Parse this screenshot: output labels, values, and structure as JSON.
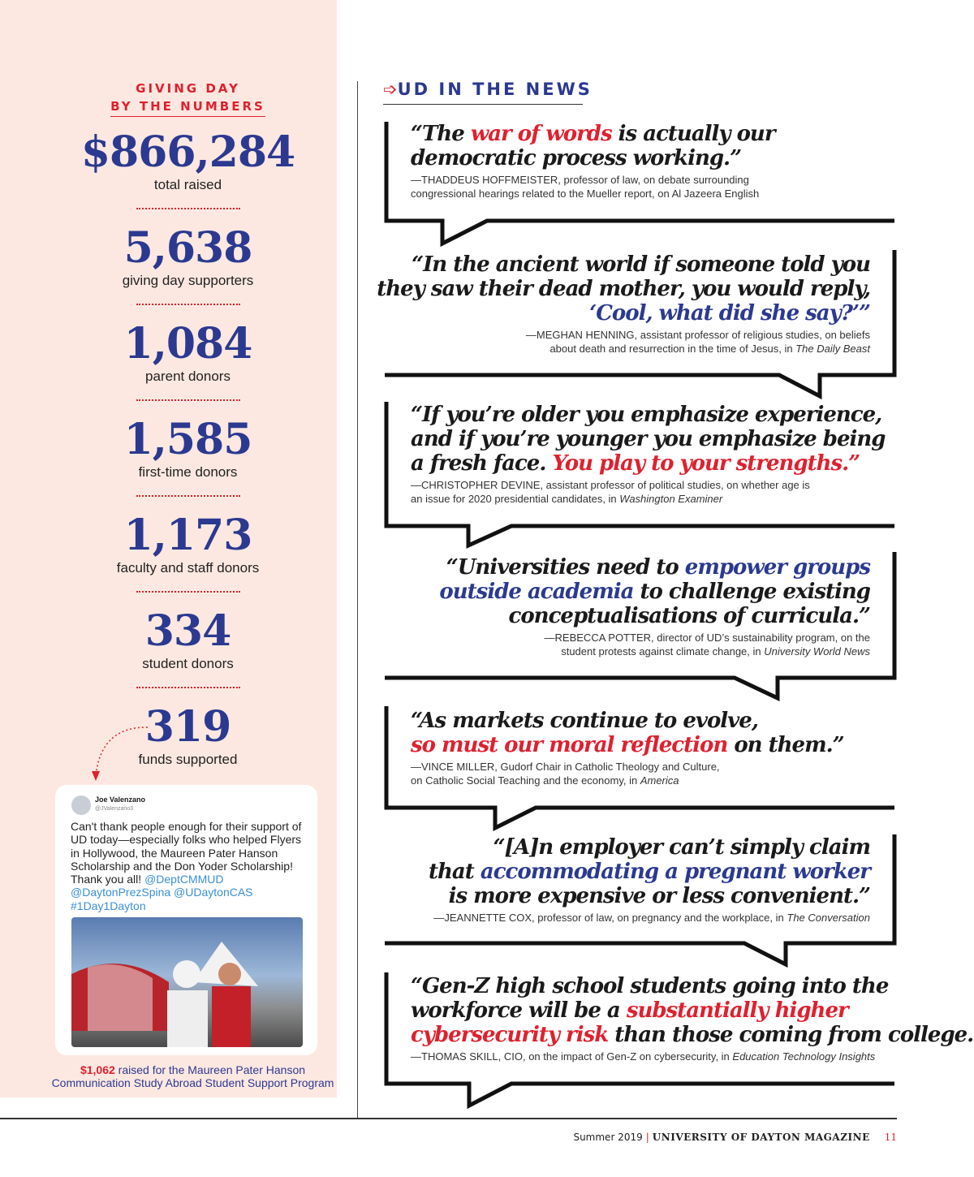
{
  "sidebar": {
    "heading_line1": "GIVING DAY",
    "heading_line2": "BY THE NUMBERS",
    "stats": [
      {
        "value": "$866,284",
        "label": "total raised"
      },
      {
        "value": "5,638",
        "label": "giving day supporters"
      },
      {
        "value": "1,084",
        "label": "parent donors"
      },
      {
        "value": "1,585",
        "label": "first-time donors"
      },
      {
        "value": "1,173",
        "label": "faculty and staff donors"
      },
      {
        "value": "334",
        "label": "student donors"
      },
      {
        "value": "319",
        "label": "funds supported"
      }
    ],
    "tweet": {
      "name": "Joe Valenzano",
      "handle": "@JValenzano3",
      "text": "Can't thank people enough for their support of UD today—especially folks who helped Flyers in Hollywood, the Maureen Pater Hanson Scholarship and the Don Yoder Scholarship! Thank you all! ",
      "links": "@DeptCMMUD @DaytonPrezSpina @UDaytonCAS #1Day1Dayton"
    },
    "caption_amount": "$1,062",
    "caption_text": " raised for the Maureen Pater Hanson Communication Study Abroad Student Support Program"
  },
  "news": {
    "heading": "UD IN THE NEWS",
    "arrow_icon": "arrow-right-icon",
    "quotes": [
      {
        "side": "left",
        "lines": [
          [
            {
              "t": "“The "
            },
            {
              "t": "war of words",
              "c": "red"
            },
            {
              "t": " is actually our"
            }
          ],
          [
            {
              "t": "democratic process working.”"
            }
          ]
        ],
        "attribution": [
          [
            {
              "t": "—THADDEUS HOFFMEISTER, professor of law, on debate surrounding"
            }
          ],
          [
            {
              "t": "congressional hearings related to the Mueller report, on Al Jazeera English"
            }
          ]
        ]
      },
      {
        "side": "right",
        "lines": [
          [
            {
              "t": "“In the ancient world if someone told you"
            }
          ],
          [
            {
              "t": "they saw their dead mother, you would reply,"
            }
          ],
          [
            {
              "t": "‘Cool, what did she say?’”",
              "c": "blue"
            }
          ]
        ],
        "attribution": [
          [
            {
              "t": "—MEGHAN HENNING, assistant professor of religious studies, on beliefs"
            }
          ],
          [
            {
              "t": "about death and resurrection in the time of Jesus, in "
            },
            {
              "t": "The Daily Beast",
              "i": true
            }
          ]
        ]
      },
      {
        "side": "left",
        "lines": [
          [
            {
              "t": "“If you’re older you emphasize experience,"
            }
          ],
          [
            {
              "t": "and if you’re younger you emphasize being"
            }
          ],
          [
            {
              "t": "a fresh face. "
            },
            {
              "t": "You play to your strengths.”",
              "c": "red"
            }
          ]
        ],
        "attribution": [
          [
            {
              "t": "—CHRISTOPHER DEVINE, assistant professor of political studies, on whether age is"
            }
          ],
          [
            {
              "t": "an issue for 2020 presidential candidates, in "
            },
            {
              "t": "Washington Examiner",
              "i": true
            }
          ]
        ]
      },
      {
        "side": "right",
        "lines": [
          [
            {
              "t": "“Universities need to "
            },
            {
              "t": "empower groups",
              "c": "blue"
            }
          ],
          [
            {
              "t": "outside academia",
              "c": "blue"
            },
            {
              "t": " to challenge existing"
            }
          ],
          [
            {
              "t": "conceptualisations of curricula.”"
            }
          ]
        ],
        "attribution": [
          [
            {
              "t": "—REBECCA POTTER, director of UD’s sustainability program, on the"
            }
          ],
          [
            {
              "t": "student protests against climate change, in "
            },
            {
              "t": "University World News",
              "i": true
            }
          ]
        ]
      },
      {
        "side": "left",
        "lines": [
          [
            {
              "t": "“As markets continue to evolve,"
            }
          ],
          [
            {
              "t": "so must our moral reflection",
              "c": "red"
            },
            {
              "t": " on them.”"
            }
          ]
        ],
        "attribution": [
          [
            {
              "t": "—VINCE MILLER, Gudorf Chair in Catholic Theology and Culture,"
            }
          ],
          [
            {
              "t": "on Catholic Social Teaching and the economy, in "
            },
            {
              "t": "America",
              "i": true
            }
          ]
        ]
      },
      {
        "side": "right",
        "lines": [
          [
            {
              "t": "“[A]n employer can’t simply claim"
            }
          ],
          [
            {
              "t": "that "
            },
            {
              "t": "accommodating a pregnant worker",
              "c": "blue"
            }
          ],
          [
            {
              "t": "is more expensive or less convenient.”"
            }
          ]
        ],
        "attribution": [
          [
            {
              "t": "—JEANNETTE COX, professor of law, on pregnancy and the workplace, in "
            },
            {
              "t": "The Conversation",
              "i": true
            }
          ]
        ]
      },
      {
        "side": "left",
        "lines": [
          [
            {
              "t": "“Gen-Z high school students going into the"
            }
          ],
          [
            {
              "t": "workforce will be a "
            },
            {
              "t": "substantially higher",
              "c": "red"
            }
          ],
          [
            {
              "t": "cybersecurity risk",
              "c": "red"
            },
            {
              "t": " than those coming from college.”"
            }
          ]
        ],
        "attribution": [
          [
            {
              "t": "—THOMAS SKILL, CIO, on the impact of Gen-Z on cybersecurity, in "
            },
            {
              "t": "Education Technology Insights",
              "i": true
            }
          ]
        ]
      }
    ]
  },
  "footer": {
    "season": "Summer 2019",
    "magazine": "UNIVERSITY OF DAYTON MAGAZINE",
    "page": "11"
  },
  "colors": {
    "navy": "#2b3990",
    "red": "#e0202e",
    "panel": "#fde8e1"
  }
}
